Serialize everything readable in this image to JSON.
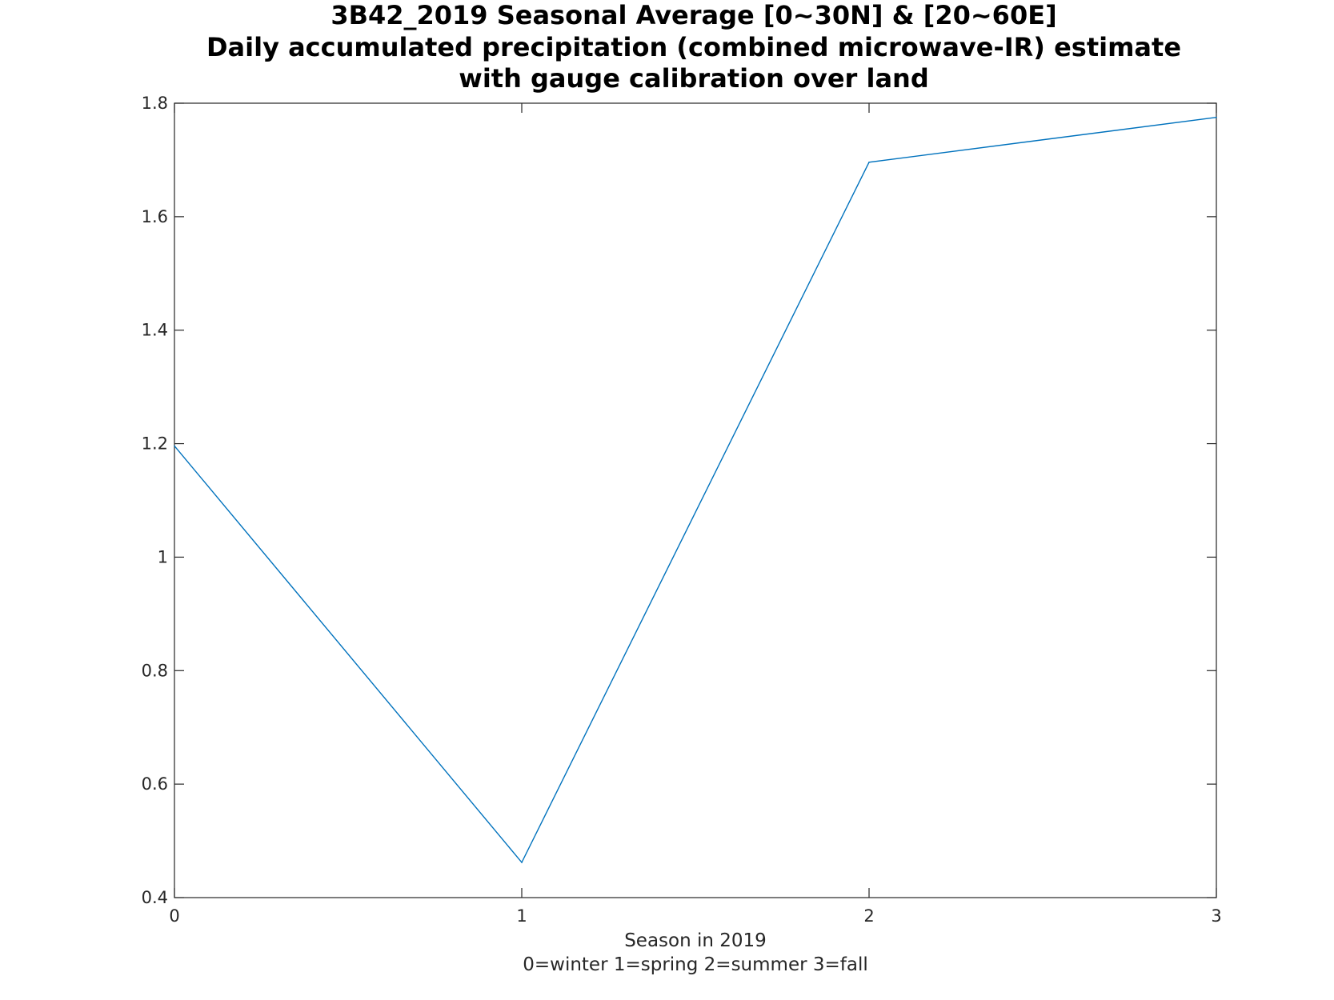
{
  "chart_data": {
    "type": "line",
    "title_lines": [
      "3B42_2019 Seasonal Average [0~30N] & [20~60E]",
      "Daily accumulated precipitation (combined microwave-IR) estimate",
      "with gauge calibration over land"
    ],
    "xlabel_lines": [
      "Season in 2019",
      "0=winter 1=spring 2=summer 3=fall"
    ],
    "ylabel": "",
    "x": [
      0,
      1,
      2,
      3
    ],
    "series": [
      {
        "values": [
          1.196,
          0.462,
          1.696,
          1.775
        ],
        "color": "#0072bd"
      }
    ],
    "xlim": [
      0,
      3
    ],
    "ylim": [
      0.4,
      1.8
    ],
    "xticks": [
      0,
      1,
      2,
      3
    ],
    "xtick_labels": [
      "0",
      "1",
      "2",
      "3"
    ],
    "yticks": [
      0.4,
      0.6,
      0.8,
      1.0,
      1.2,
      1.4,
      1.6,
      1.8
    ],
    "ytick_labels": [
      "0.4",
      "0.6",
      "0.8",
      "1",
      "1.2",
      "1.4",
      "1.6",
      "1.8"
    ],
    "grid": false,
    "legend": "none"
  }
}
